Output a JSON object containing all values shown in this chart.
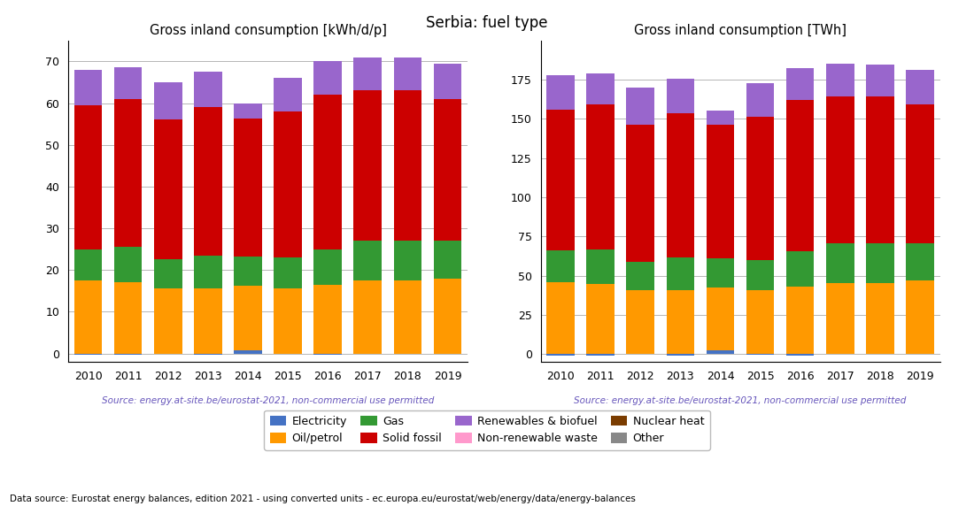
{
  "years": [
    2010,
    2011,
    2012,
    2013,
    2014,
    2015,
    2016,
    2017,
    2018,
    2019
  ],
  "title": "Serbia: fuel type",
  "subtitle_left": "Gross inland consumption [kWh/d/p]",
  "subtitle_right": "Gross inland consumption [TWh]",
  "source_text": "Source: energy.at-site.be/eurostat-2021, non-commercial use permitted",
  "footer_text": "Data source: Eurostat energy balances, edition 2021 - using converted units - ec.europa.eu/eurostat/web/energy/data/energy-balances",
  "categories": [
    "Electricity",
    "Oil/petrol",
    "Gas",
    "Solid fossil",
    "Renewables & biofuel",
    "Non-renewable waste",
    "Nuclear heat",
    "Other"
  ],
  "colors": [
    "#4472c4",
    "#ff9900",
    "#339933",
    "#cc0000",
    "#9966cc",
    "#ff99cc",
    "#7a3c00",
    "#888888"
  ],
  "kwhd": {
    "Electricity": [
      -0.3,
      -0.3,
      0.0,
      -0.4,
      0.8,
      -0.2,
      -0.4,
      0.0,
      0.0,
      0.0
    ],
    "Oil/petrol": [
      17.5,
      17.0,
      15.5,
      15.5,
      15.5,
      15.5,
      16.5,
      17.5,
      17.5,
      18.0
    ],
    "Gas": [
      7.5,
      8.5,
      7.0,
      8.0,
      7.0,
      7.5,
      8.5,
      9.5,
      9.5,
      9.0
    ],
    "Solid fossil": [
      34.5,
      35.5,
      33.5,
      35.5,
      33.0,
      35.0,
      37.0,
      36.0,
      36.0,
      34.0
    ],
    "Renewables & biofuel": [
      8.5,
      7.5,
      9.0,
      8.5,
      3.5,
      8.0,
      8.0,
      8.0,
      8.0,
      8.5
    ],
    "Non-renewable waste": [
      0.0,
      0.0,
      0.0,
      0.0,
      0.0,
      0.0,
      0.0,
      0.0,
      0.0,
      0.0
    ],
    "Nuclear heat": [
      0.0,
      0.0,
      0.0,
      0.0,
      0.0,
      0.0,
      0.0,
      0.0,
      0.0,
      0.0
    ],
    "Other": [
      0.0,
      0.0,
      0.0,
      0.0,
      0.0,
      0.0,
      0.0,
      0.0,
      0.0,
      0.0
    ]
  },
  "twh": {
    "Electricity": [
      -0.8,
      -0.8,
      0.0,
      -1.0,
      2.1,
      -0.5,
      -1.0,
      0.0,
      0.0,
      0.0
    ],
    "Oil/petrol": [
      46.0,
      44.5,
      40.5,
      40.5,
      40.5,
      40.5,
      43.0,
      45.5,
      45.5,
      47.0
    ],
    "Gas": [
      20.0,
      22.0,
      18.5,
      21.0,
      18.5,
      19.5,
      22.5,
      25.0,
      25.0,
      23.5
    ],
    "Solid fossil": [
      90.0,
      92.5,
      87.5,
      92.0,
      85.0,
      91.5,
      96.5,
      94.0,
      94.0,
      88.5
    ],
    "Renewables & biofuel": [
      22.0,
      20.0,
      23.5,
      22.0,
      9.0,
      21.0,
      20.5,
      20.5,
      20.0,
      22.0
    ],
    "Non-renewable waste": [
      0.0,
      0.0,
      0.0,
      0.0,
      0.0,
      0.0,
      0.0,
      0.0,
      0.0,
      0.0
    ],
    "Nuclear heat": [
      0.0,
      0.0,
      0.0,
      0.0,
      0.0,
      0.0,
      0.0,
      0.0,
      0.0,
      0.0
    ],
    "Other": [
      0.0,
      0.0,
      0.0,
      0.0,
      0.0,
      0.0,
      0.0,
      0.0,
      0.0,
      0.0
    ]
  },
  "ylim_kwh": [
    -2,
    75
  ],
  "ylim_twh": [
    -5,
    200
  ],
  "yticks_kwh": [
    0,
    10,
    20,
    30,
    40,
    50,
    60,
    70
  ],
  "yticks_twh": [
    0,
    25,
    50,
    75,
    100,
    125,
    150,
    175
  ],
  "source_color": "#6655bb",
  "footer_color": "#000000",
  "bar_width": 0.7
}
